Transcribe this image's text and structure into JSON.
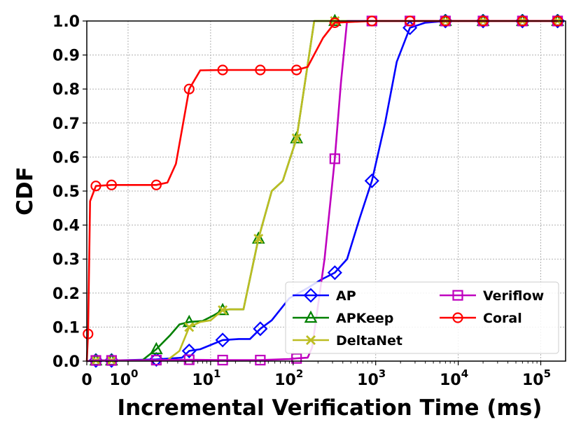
{
  "chart_data": {
    "type": "line",
    "xlabel": "Incremental Verification Time (ms)",
    "ylabel": "CDF",
    "xscale": "symlog",
    "xlim": [
      0,
      200000
    ],
    "ylim": [
      0,
      1
    ],
    "grid": true,
    "legend_position": "lower-right",
    "x_ticks": [
      {
        "value": 0,
        "label": "0"
      },
      {
        "value": 1,
        "label": "10",
        "exp": "0"
      },
      {
        "value": 10,
        "label": "10",
        "exp": "1"
      },
      {
        "value": 100,
        "label": "10",
        "exp": "2"
      },
      {
        "value": 1000,
        "label": "10",
        "exp": "3"
      },
      {
        "value": 10000,
        "label": "10",
        "exp": "4"
      },
      {
        "value": 100000,
        "label": "10",
        "exp": "5"
      }
    ],
    "y_ticks": [
      "0.0",
      "0.1",
      "0.2",
      "0.3",
      "0.4",
      "0.5",
      "0.6",
      "0.7",
      "0.8",
      "0.9",
      "1.0"
    ],
    "series": [
      {
        "name": "AP",
        "color": "#0000ff",
        "marker": "diamond",
        "line": [
          [
            0,
            0
          ],
          [
            0.22,
            0.002
          ],
          [
            0.6,
            0.002
          ],
          [
            1.0,
            0.003
          ],
          [
            2.2,
            0.005
          ],
          [
            4.5,
            0.01
          ],
          [
            5.5,
            0.03
          ],
          [
            7.5,
            0.035
          ],
          [
            14,
            0.062
          ],
          [
            22,
            0.065
          ],
          [
            30,
            0.065
          ],
          [
            40,
            0.095
          ],
          [
            55,
            0.12
          ],
          [
            90,
            0.185
          ],
          [
            150,
            0.215
          ],
          [
            220,
            0.24
          ],
          [
            320,
            0.26
          ],
          [
            450,
            0.3
          ],
          [
            640,
            0.42
          ],
          [
            900,
            0.53
          ],
          [
            1300,
            0.7
          ],
          [
            1800,
            0.88
          ],
          [
            2600,
            0.98
          ],
          [
            4000,
            0.995
          ],
          [
            7000,
            1
          ],
          [
            20000,
            1
          ],
          [
            60000,
            1
          ],
          [
            160000,
            1
          ]
        ],
        "markers": [
          [
            0.22,
            0.002
          ],
          [
            0.6,
            0.002
          ],
          [
            2.2,
            0.005
          ],
          [
            5.5,
            0.03
          ],
          [
            14,
            0.062
          ],
          [
            40,
            0.095
          ],
          [
            320,
            0.26
          ],
          [
            900,
            0.53
          ],
          [
            2600,
            0.98
          ],
          [
            7000,
            1
          ],
          [
            20000,
            1
          ],
          [
            60000,
            1
          ],
          [
            160000,
            1
          ]
        ]
      },
      {
        "name": "APKeep",
        "color": "#008000",
        "marker": "triangle",
        "line": [
          [
            0,
            0
          ],
          [
            0.22,
            0.002
          ],
          [
            0.6,
            0.002
          ],
          [
            1.5,
            0.003
          ],
          [
            2.2,
            0.035
          ],
          [
            3.2,
            0.075
          ],
          [
            4.2,
            0.108
          ],
          [
            5.5,
            0.115
          ],
          [
            8,
            0.118
          ],
          [
            11,
            0.135
          ],
          [
            14,
            0.15
          ],
          [
            17,
            0.152
          ],
          [
            25,
            0.152
          ],
          [
            38,
            0.36
          ],
          [
            55,
            0.5
          ],
          [
            75,
            0.53
          ],
          [
            110,
            0.655
          ],
          [
            180,
            1
          ],
          [
            320,
            1
          ],
          [
            7000,
            1
          ],
          [
            160000,
            1
          ]
        ],
        "markers": [
          [
            0.22,
            0.002
          ],
          [
            0.6,
            0.002
          ],
          [
            2.2,
            0.035
          ],
          [
            5.5,
            0.115
          ],
          [
            14,
            0.15
          ],
          [
            38,
            0.36
          ],
          [
            110,
            0.655
          ],
          [
            320,
            1
          ],
          [
            7000,
            1
          ],
          [
            20000,
            1
          ],
          [
            60000,
            1
          ],
          [
            160000,
            1
          ]
        ]
      },
      {
        "name": "DeltaNet",
        "color": "#bcbd22",
        "marker": "x",
        "line": [
          [
            0,
            0
          ],
          [
            0.22,
            0.002
          ],
          [
            0.6,
            0.002
          ],
          [
            2.2,
            0.002
          ],
          [
            3.0,
            0.003
          ],
          [
            4.2,
            0.03
          ],
          [
            5.5,
            0.1
          ],
          [
            7.5,
            0.115
          ],
          [
            10,
            0.12
          ],
          [
            14,
            0.15
          ],
          [
            17,
            0.152
          ],
          [
            25,
            0.152
          ],
          [
            38,
            0.36
          ],
          [
            55,
            0.5
          ],
          [
            75,
            0.53
          ],
          [
            110,
            0.655
          ],
          [
            180,
            1
          ],
          [
            320,
            1
          ],
          [
            7000,
            1
          ],
          [
            160000,
            1
          ]
        ],
        "markers": [
          [
            0.22,
            0.002
          ],
          [
            0.6,
            0.002
          ],
          [
            5.5,
            0.1
          ],
          [
            14,
            0.15
          ],
          [
            38,
            0.36
          ],
          [
            110,
            0.655
          ],
          [
            320,
            1
          ],
          [
            7000,
            1
          ],
          [
            20000,
            1
          ],
          [
            60000,
            1
          ],
          [
            160000,
            1
          ]
        ]
      },
      {
        "name": "Veriflow",
        "color": "#bf00bf",
        "marker": "square",
        "line": [
          [
            0,
            0
          ],
          [
            0.22,
            0.002
          ],
          [
            0.6,
            0.002
          ],
          [
            2.2,
            0.003
          ],
          [
            5.5,
            0.004
          ],
          [
            14,
            0.003
          ],
          [
            40,
            0.003
          ],
          [
            90,
            0.006
          ],
          [
            110,
            0.008
          ],
          [
            150,
            0.01
          ],
          [
            170,
            0.04
          ],
          [
            240,
            0.3
          ],
          [
            320,
            0.595
          ],
          [
            380,
            0.82
          ],
          [
            450,
            1
          ],
          [
            900,
            1
          ],
          [
            7000,
            1
          ],
          [
            160000,
            1
          ]
        ],
        "markers": [
          [
            0.22,
            0.002
          ],
          [
            0.6,
            0.002
          ],
          [
            2.2,
            0.003
          ],
          [
            5.5,
            0.004
          ],
          [
            14,
            0.003
          ],
          [
            40,
            0.003
          ],
          [
            110,
            0.008
          ],
          [
            320,
            0.595
          ],
          [
            900,
            1
          ],
          [
            2600,
            1
          ],
          [
            7000,
            1
          ],
          [
            20000,
            1
          ],
          [
            60000,
            1
          ],
          [
            160000,
            1
          ]
        ]
      },
      {
        "name": "Coral",
        "color": "#ff0000",
        "marker": "circle",
        "line": [
          [
            0,
            0
          ],
          [
            0.03,
            0.08
          ],
          [
            0.08,
            0.47
          ],
          [
            0.22,
            0.515
          ],
          [
            0.6,
            0.518
          ],
          [
            1.0,
            0.518
          ],
          [
            2.2,
            0.518
          ],
          [
            3.0,
            0.525
          ],
          [
            3.8,
            0.58
          ],
          [
            5.5,
            0.8
          ],
          [
            7.5,
            0.855
          ],
          [
            14,
            0.856
          ],
          [
            40,
            0.856
          ],
          [
            110,
            0.856
          ],
          [
            150,
            0.865
          ],
          [
            230,
            0.95
          ],
          [
            320,
            0.995
          ],
          [
            900,
            1
          ],
          [
            7000,
            1
          ],
          [
            160000,
            1
          ]
        ],
        "markers": [
          [
            0.03,
            0.08
          ],
          [
            0.22,
            0.515
          ],
          [
            0.6,
            0.518
          ],
          [
            2.2,
            0.518
          ],
          [
            5.5,
            0.8
          ],
          [
            14,
            0.856
          ],
          [
            40,
            0.856
          ],
          [
            110,
            0.856
          ],
          [
            320,
            0.995
          ],
          [
            900,
            1
          ],
          [
            2600,
            1
          ],
          [
            7000,
            1
          ],
          [
            20000,
            1
          ],
          [
            60000,
            1
          ],
          [
            160000,
            1
          ]
        ]
      }
    ],
    "legend": {
      "columns": [
        [
          "AP",
          "APKeep",
          "DeltaNet"
        ],
        [
          "Veriflow",
          "Coral"
        ]
      ]
    }
  }
}
